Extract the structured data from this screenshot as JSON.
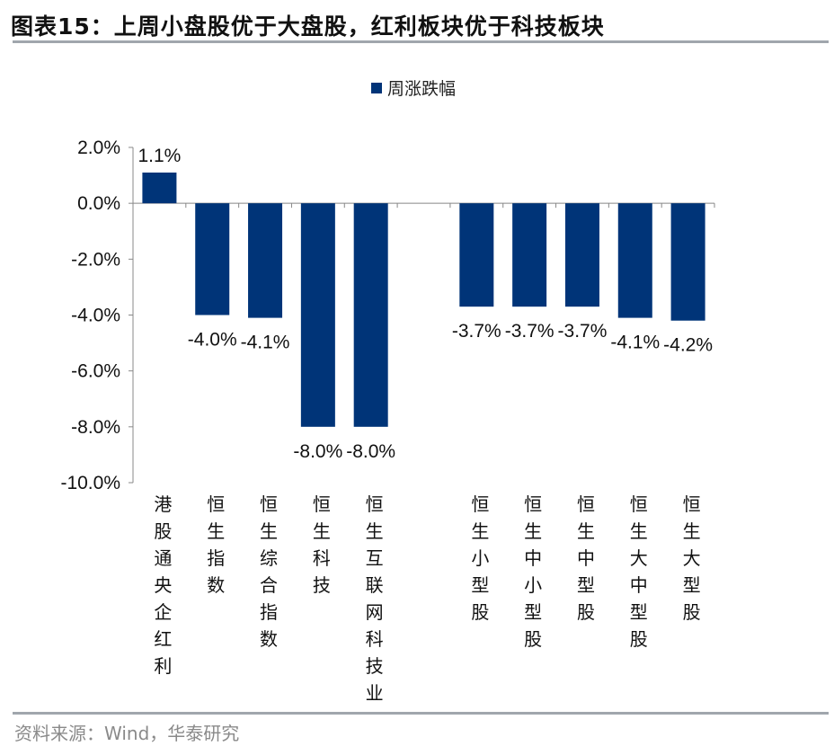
{
  "title": "图表15：上周小盘股优于大盘股，红利板块优于科技板块",
  "source": "资料来源：Wind，华泰研究",
  "chart_data": {
    "type": "bar",
    "title": "图表15：上周小盘股优于大盘股，红利板块优于科技板块",
    "categories": [
      "港股通央企红利",
      "恒生指数",
      "恒生综合指数",
      "恒生科技",
      "恒生互联网科技业",
      "",
      "恒生小型股",
      "恒生中小型股",
      "恒生中型股",
      "恒生大中型股",
      "恒生大型股"
    ],
    "series": [
      {
        "name": "周涨跌幅",
        "values": [
          1.1,
          -4.0,
          -4.1,
          -8.0,
          -8.0,
          null,
          -3.7,
          -3.7,
          -3.7,
          -4.1,
          -4.2
        ],
        "color": "#003478"
      }
    ],
    "data_labels": [
      "1.1%",
      "-4.0%",
      "-4.1%",
      "-8.0%",
      "-8.0%",
      "",
      "-3.7%",
      "-3.7%",
      "-3.7%",
      "-4.1%",
      "-4.2%"
    ],
    "yticks": [
      "2.0%",
      "0.0%",
      "-2.0%",
      "-4.0%",
      "-6.0%",
      "-8.0%",
      "-10.0%"
    ],
    "ylim": [
      -10,
      2
    ],
    "xlabel": "",
    "ylabel": "",
    "grid": false,
    "legend": "top-center"
  }
}
